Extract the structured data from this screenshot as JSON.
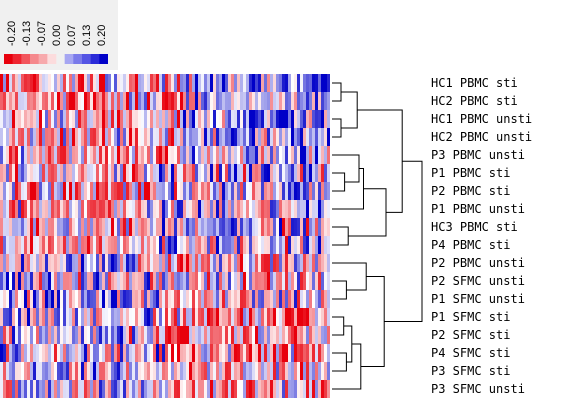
{
  "chart_data": {
    "type": "heatmap",
    "color_scale": {
      "ticks": [
        "-0.20",
        "-0.13",
        "-0.07",
        "0.00",
        "0.07",
        "0.13",
        "0.20"
      ],
      "colors": [
        "#e8000c",
        "#f2555c",
        "#f7a9ac",
        "#ffffff",
        "#a6a6f2",
        "#5454e4",
        "#0000c8"
      ]
    },
    "rows": [
      "HC1 PBMC sti",
      "HC2 PBMC sti",
      "HC1 PBMC unsti",
      "HC2 PBMC unsti",
      "P3 PBMC unsti",
      "P1 PBMC sti",
      "P2 PBMC sti",
      "P1 PBMC unsti",
      "HC3 PBMC sti",
      "P4 PBMC sti",
      "P2 PBMC unsti",
      "P2 SFMC unsti",
      "P1 SFMC unsti",
      "P1 SFMC sti",
      "P2 SFMC sti",
      "P4 SFMC sti",
      "P3 SFMC sti",
      "P3 SFMC unsti"
    ],
    "column_count": 110,
    "dendrogram_merges": [
      [
        0,
        1,
        0.1
      ],
      [
        2,
        3,
        0.1
      ],
      [
        18,
        19,
        0.28
      ],
      [
        5,
        6,
        0.14
      ],
      [
        4,
        21,
        0.3
      ],
      [
        22,
        7,
        0.35
      ],
      [
        8,
        9,
        0.18
      ],
      [
        23,
        24,
        0.6
      ],
      [
        20,
        25,
        0.78
      ],
      [
        11,
        12,
        0.16
      ],
      [
        10,
        27,
        0.38
      ],
      [
        13,
        14,
        0.13
      ],
      [
        15,
        16,
        0.16
      ],
      [
        29,
        30,
        0.22
      ],
      [
        31,
        17,
        0.32
      ],
      [
        28,
        32,
        0.58
      ],
      [
        26,
        33,
        1.0
      ]
    ]
  }
}
